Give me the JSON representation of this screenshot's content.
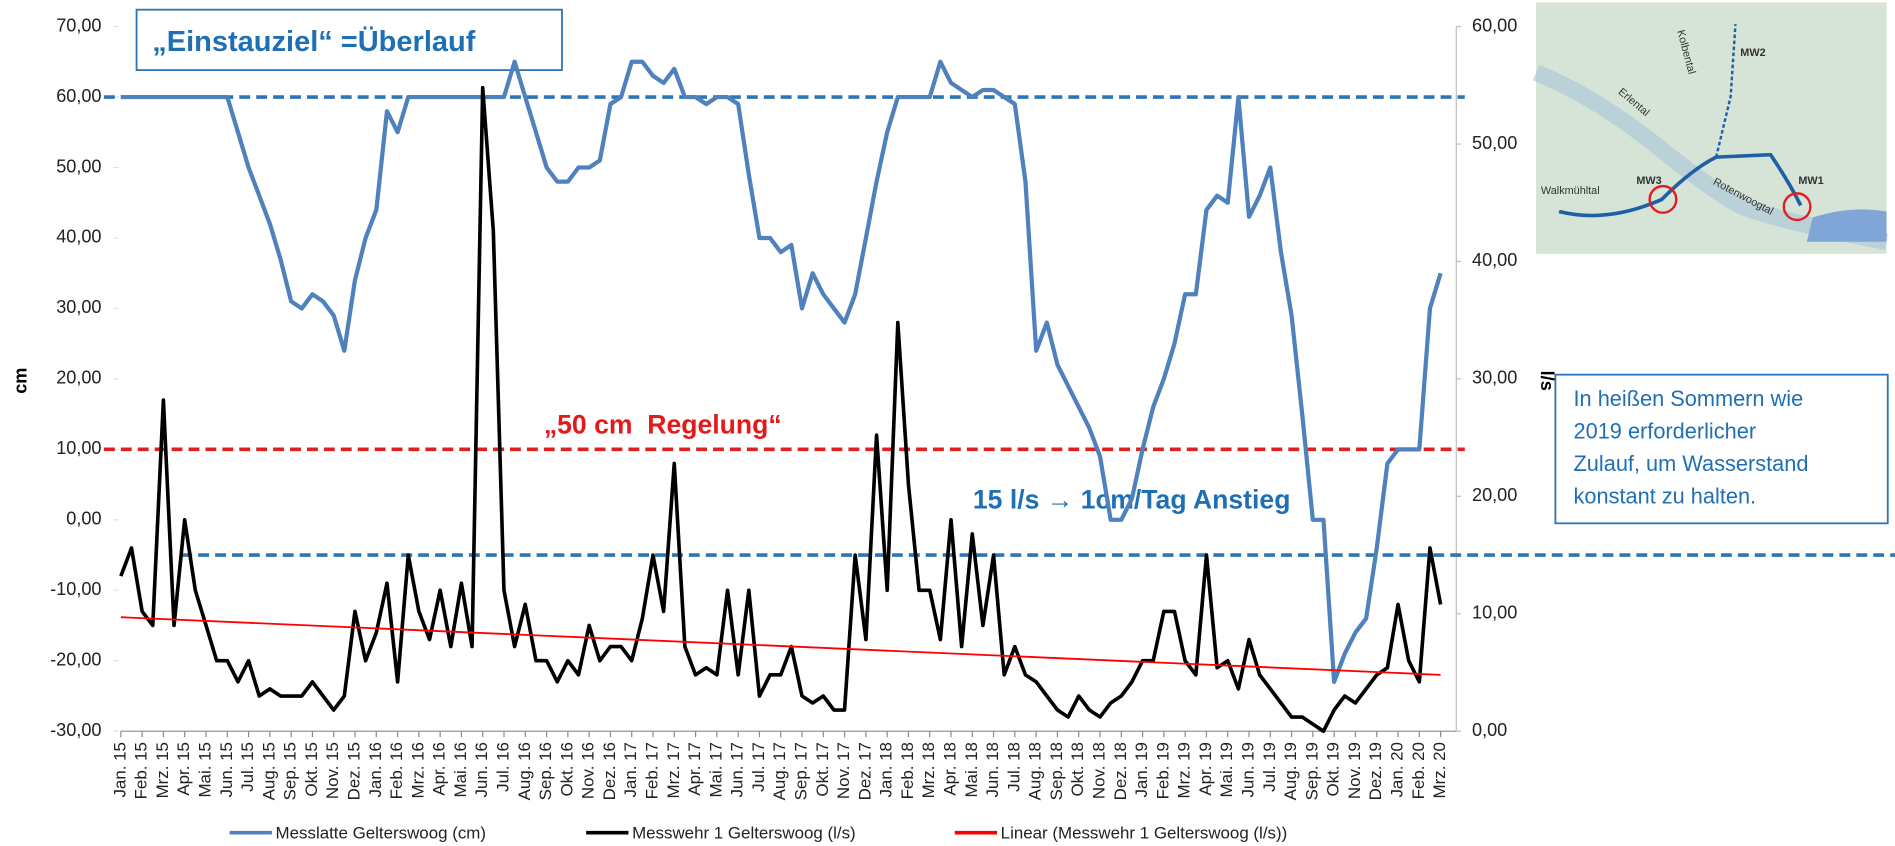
{
  "chart_data": {
    "type": "line",
    "categories": [
      "Jan. 15",
      null,
      "Feb. 15",
      null,
      "Mrz. 15",
      null,
      "Apr. 15",
      null,
      "Mai. 15",
      null,
      "Jun. 15",
      null,
      "Jul. 15",
      null,
      "Aug. 15",
      null,
      "Sep. 15",
      null,
      "Okt. 15",
      null,
      "Nov. 15",
      null,
      "Dez. 15",
      null,
      "Jan. 16",
      null,
      "Feb. 16",
      null,
      "Mrz. 16",
      null,
      "Apr. 16",
      null,
      "Mai. 16",
      null,
      "Jun. 16",
      null,
      "Jul. 16",
      null,
      "Aug. 16",
      null,
      "Sep. 16",
      null,
      "Okt. 16",
      null,
      "Nov. 16",
      null,
      "Dez. 16",
      null,
      "Jan. 17",
      null,
      "Feb. 17",
      null,
      "Mrz. 17",
      null,
      "Apr. 17",
      null,
      "Mai. 17",
      null,
      "Jun. 17",
      null,
      "Jul. 17",
      null,
      "Aug. 17",
      null,
      "Sep. 17",
      null,
      "Okt. 17",
      null,
      "Nov. 17",
      null,
      "Dez. 17",
      null,
      "Jan. 18",
      null,
      "Feb. 18",
      null,
      "Mrz. 18",
      null,
      "Apr. 18",
      null,
      "Mai. 18",
      null,
      "Jun. 18",
      null,
      "Jul. 18",
      null,
      "Aug. 18",
      null,
      "Sep. 18",
      null,
      "Okt. 18",
      null,
      "Nov. 18",
      null,
      "Dez. 18",
      null,
      "Jan. 19",
      null,
      "Feb. 19",
      null,
      "Mrz. 19",
      null,
      "Apr. 19",
      null,
      "Mai. 19",
      null,
      "Jun. 19",
      null,
      "Jul. 19",
      null,
      "Aug. 19",
      null,
      "Sep. 19",
      null,
      "Okt. 19",
      null,
      "Nov. 19",
      null,
      "Dez. 19",
      null,
      "Jan. 20",
      null,
      "Feb. 20",
      null,
      "Mrz. 20"
    ],
    "series": [
      {
        "name": "Messlatte Gelterswoog (cm)",
        "color": "#4f81bd",
        "width": 3.5,
        "axis": "y",
        "values": [
          60,
          60,
          60,
          60,
          60,
          60,
          60,
          60,
          60,
          60,
          60,
          55,
          50,
          46,
          42,
          37,
          31,
          30,
          32,
          31,
          29,
          24,
          34,
          40,
          44,
          58,
          55,
          60,
          60,
          60,
          60,
          60,
          60,
          60,
          60,
          60,
          60,
          65,
          60,
          55,
          50,
          48,
          48,
          50,
          50,
          51,
          59,
          60,
          65,
          65,
          63,
          62,
          64,
          60,
          60,
          59,
          60,
          60,
          59,
          49,
          40,
          40,
          38,
          39,
          30,
          35,
          32,
          30,
          28,
          32,
          40,
          48,
          55,
          60,
          60,
          60,
          60,
          65,
          62,
          61,
          60,
          61,
          61,
          60,
          59,
          48,
          24,
          28,
          22,
          19,
          16,
          13,
          9,
          0,
          0,
          3,
          10,
          16,
          20,
          25,
          32,
          32,
          44,
          46,
          45,
          60,
          43,
          46,
          50,
          38,
          29,
          15,
          0,
          0,
          -23,
          -19,
          -16,
          -14,
          -4,
          8,
          10,
          10,
          10,
          30,
          35
        ]
      },
      {
        "name": "Messwehr 1 Gelterswoog (l/s)",
        "color": "#000000",
        "width": 3,
        "axis": "y2",
        "values": [
          13.2,
          15.6,
          10.2,
          9.0,
          28.2,
          9.0,
          18.0,
          12.0,
          9.0,
          6.0,
          6.0,
          4.2,
          6.0,
          3.0,
          3.6,
          3.0,
          3.0,
          3.0,
          4.2,
          3.0,
          1.8,
          3.0,
          10.2,
          6.0,
          8.4,
          12.6,
          4.2,
          15.0,
          10.2,
          7.8,
          12.0,
          7.2,
          12.6,
          7.2,
          54.8,
          42.6,
          12.0,
          7.2,
          10.8,
          6.0,
          6.0,
          4.2,
          6.0,
          4.8,
          9.0,
          6.0,
          7.2,
          7.2,
          6.0,
          9.6,
          15.0,
          10.2,
          22.8,
          7.2,
          4.8,
          5.4,
          4.8,
          12.0,
          4.8,
          12.0,
          3.0,
          4.8,
          4.8,
          7.2,
          3.0,
          2.4,
          3.0,
          1.8,
          1.8,
          15.0,
          7.8,
          25.2,
          12.0,
          34.8,
          21.0,
          12.0,
          12.0,
          7.8,
          18.0,
          7.2,
          16.8,
          9.0,
          15.0,
          4.8,
          7.2,
          4.8,
          4.2,
          3.0,
          1.8,
          1.2,
          3.0,
          1.8,
          1.2,
          2.4,
          3.0,
          4.2,
          6.0,
          6.0,
          10.2,
          10.2,
          6.0,
          4.8,
          15.0,
          5.4,
          6.0,
          3.6,
          7.8,
          4.8,
          3.6,
          2.4,
          1.2,
          1.2,
          0.6,
          0.0,
          1.8,
          3.0,
          2.4,
          3.6,
          4.8,
          5.4,
          10.8,
          6.0,
          4.2,
          15.6,
          10.8
        ]
      },
      {
        "name": "Linear (Messwehr 1 Gelterswoog (l/s))",
        "color": "#ff0000",
        "width": 1.5,
        "axis": "y2",
        "x": [
          "Jan. 15",
          "Mrz. 20"
        ],
        "values": [
          9.7,
          4.8
        ]
      }
    ],
    "y_label": "cm",
    "y2_label": "l/s",
    "ylim": [
      -30,
      70
    ],
    "yticks": [
      {
        "value": -30,
        "label": "-30,00"
      },
      {
        "value": -20,
        "label": "-20,00"
      },
      {
        "value": -10,
        "label": "-10,00"
      },
      {
        "value": 0,
        "label": "0,00"
      },
      {
        "value": 10,
        "label": "10,00"
      },
      {
        "value": 20,
        "label": "20,00"
      },
      {
        "value": 30,
        "label": "30,00"
      },
      {
        "value": 40,
        "label": "40,00"
      },
      {
        "value": 50,
        "label": "50,00"
      },
      {
        "value": 60,
        "label": "60,00"
      },
      {
        "value": 70,
        "label": "70,00"
      }
    ],
    "y2lim": [
      0,
      60
    ],
    "y2ticks": [
      {
        "value": 0,
        "label": "0,00"
      },
      {
        "value": 10,
        "label": "10,00"
      },
      {
        "value": 20,
        "label": "20,00"
      },
      {
        "value": 30,
        "label": "30,00"
      },
      {
        "value": 40,
        "label": "40,00"
      },
      {
        "value": 50,
        "label": "50,00"
      },
      {
        "value": 60,
        "label": "60,00"
      }
    ],
    "reference_lines": [
      {
        "value": 60,
        "axis": "y",
        "color": "#2e75b6"
      },
      {
        "value": 10,
        "axis": "y",
        "color": "#e02020"
      },
      {
        "value": 15,
        "axis": "y2",
        "color": "#2e75b6"
      }
    ],
    "annotations": [
      "„Einstauziel“ =Überlauf",
      "„50 cm  Regelung“",
      "15 l/s → 1cm/Tag Anstieg"
    ],
    "note": [
      "In heißen Sommern wie",
      "2019 erforderlicher",
      "Zulauf, um Wasserstand",
      "konstant zu halten."
    ],
    "legend": "bottom"
  },
  "inset_map": {
    "labels": [
      "Kolbental",
      "MW2",
      "Erlental",
      "MW3",
      "MW1",
      "Walkmühltal",
      "Rotenwoogtal"
    ]
  }
}
